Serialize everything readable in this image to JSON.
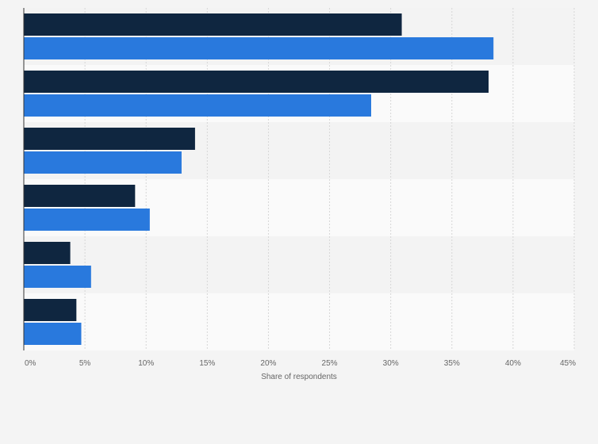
{
  "chart_data": {
    "type": "bar",
    "orientation": "horizontal",
    "title": "",
    "xlabel": "Share of respondents",
    "ylabel": "",
    "categories": [
      "",
      "",
      "",
      "",
      "",
      ""
    ],
    "series": [
      {
        "color": "#0f2640",
        "values": [
          30.9,
          38.0,
          14.0,
          9.1,
          3.8,
          4.3
        ]
      },
      {
        "color": "#2979dd",
        "values": [
          38.4,
          28.4,
          12.9,
          10.3,
          5.5,
          4.7
        ]
      }
    ],
    "xlim": [
      0,
      45
    ],
    "ticks": [
      "0%",
      "5%",
      "10%",
      "15%",
      "20%",
      "25%",
      "30%",
      "35%",
      "40%",
      "45%"
    ],
    "grid": true,
    "legend": "none"
  }
}
